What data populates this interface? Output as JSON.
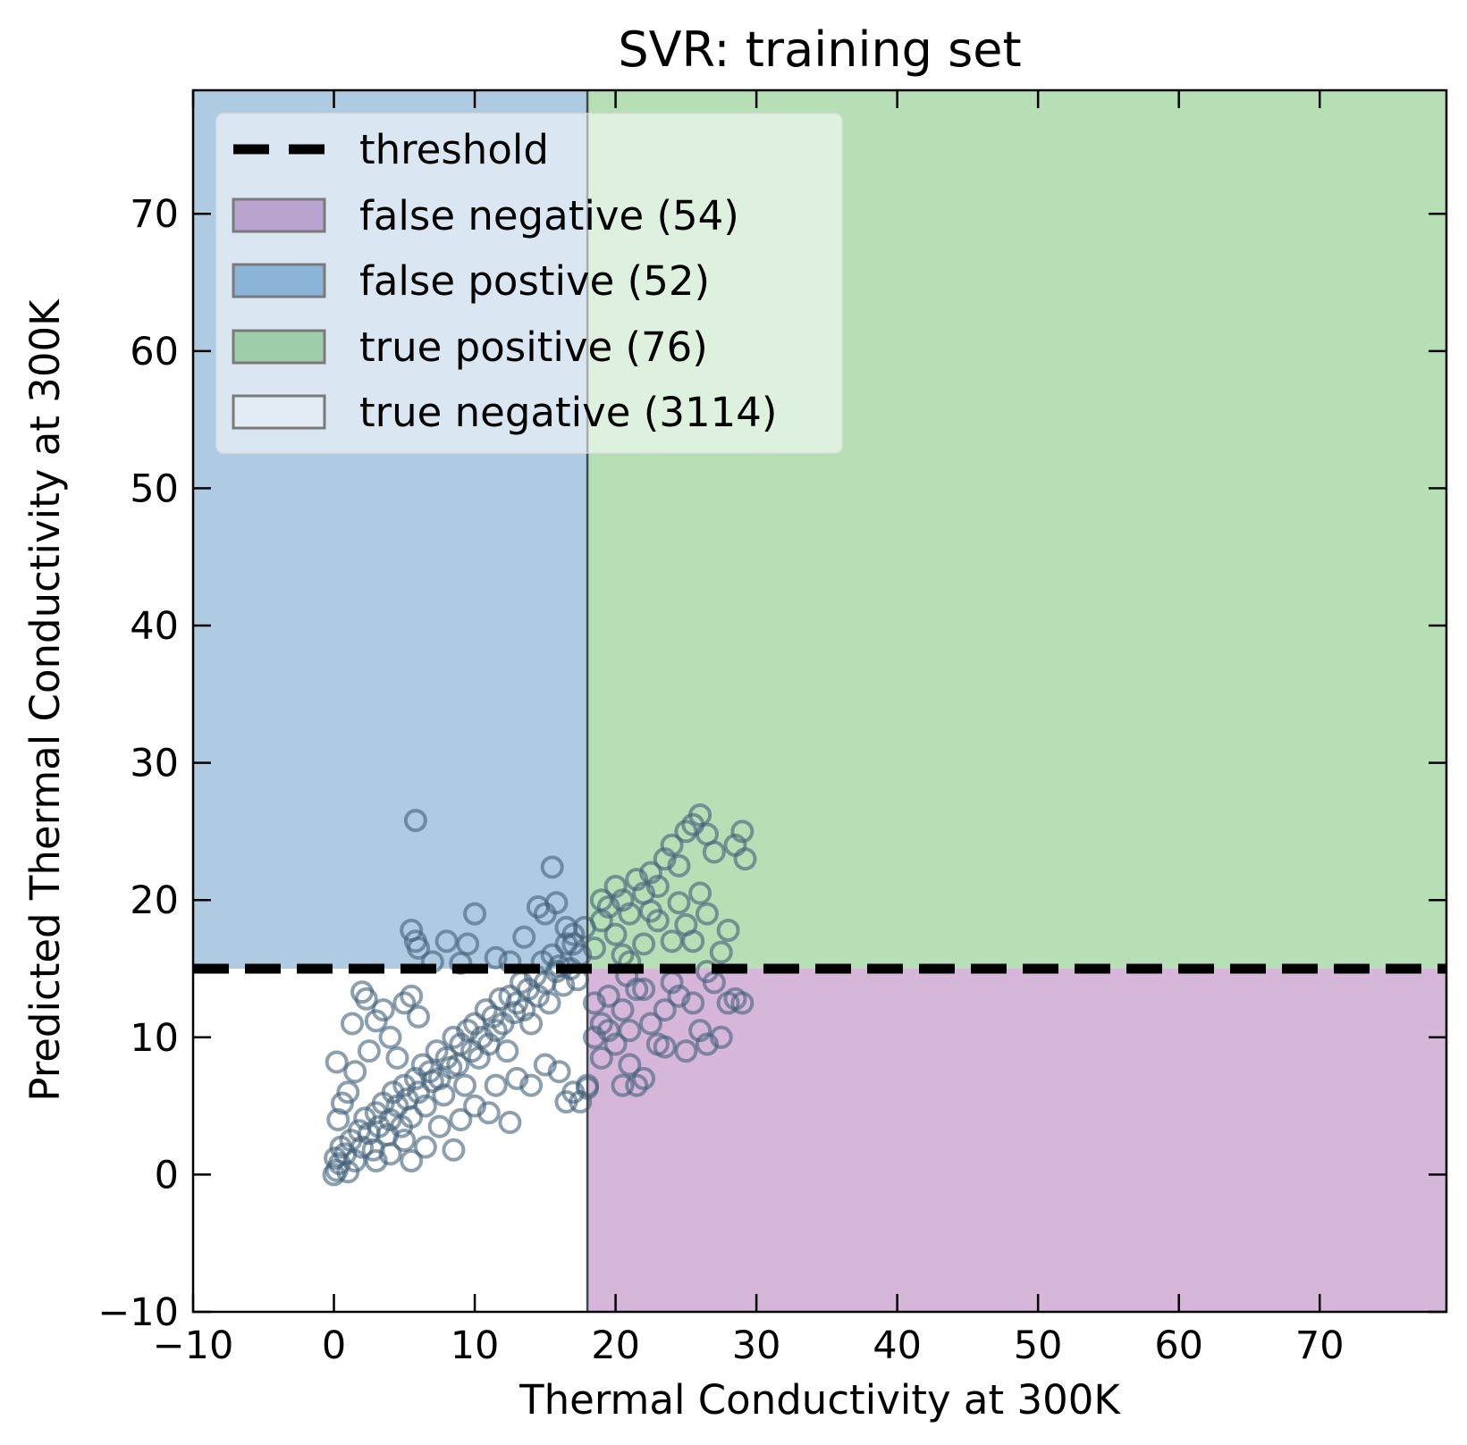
{
  "chart_data": {
    "type": "scatter",
    "title": "SVR: training set",
    "xlabel": "Thermal Conductivity at 300K",
    "ylabel": "Predicted Thermal Conductivity at 300K",
    "xlim": [
      -10,
      79
    ],
    "ylim": [
      -10,
      79
    ],
    "xticks": [
      -10,
      0,
      10,
      20,
      30,
      40,
      50,
      60,
      70
    ],
    "yticks": [
      -10,
      0,
      10,
      20,
      30,
      40,
      50,
      60,
      70
    ],
    "xtick_labels": [
      "−10",
      "0",
      "10",
      "20",
      "30",
      "40",
      "50",
      "60",
      "70"
    ],
    "ytick_labels": [
      "−10",
      "0",
      "10",
      "20",
      "30",
      "40",
      "50",
      "60",
      "70"
    ],
    "threshold": {
      "x": 18,
      "y": 15
    },
    "legend_placement": "upper-left",
    "legend": [
      {
        "label": "threshold",
        "kind": "line",
        "color": "#000000"
      },
      {
        "label": "false negative (54)",
        "kind": "patch",
        "color": "#b9a3cf"
      },
      {
        "label": "false postive (52)",
        "kind": "patch",
        "color": "#8cb4d9"
      },
      {
        "label": "true positive (76)",
        "kind": "patch",
        "color": "#9dcda9"
      },
      {
        "label": "true negative (3114)",
        "kind": "patch",
        "color": "#e3ecf4"
      }
    ],
    "regions": {
      "false_negative_color": "#d6b6d9",
      "false_positive_color": "#aecbe2",
      "true_positive_color": "#b7dfb6",
      "true_negative_color": "#ffffff"
    },
    "marker_color": "#41607a",
    "points": [
      [
        0,
        0
      ],
      [
        0.2,
        0.3
      ],
      [
        0.1,
        1.2
      ],
      [
        0.4,
        0.8
      ],
      [
        0.5,
        2.0
      ],
      [
        0.8,
        1.5
      ],
      [
        1.0,
        0.2
      ],
      [
        1.2,
        2.5
      ],
      [
        1.5,
        1.0
      ],
      [
        1.8,
        3.2
      ],
      [
        2.0,
        2.0
      ],
      [
        2.2,
        4.1
      ],
      [
        2.5,
        3.0
      ],
      [
        2.8,
        1.8
      ],
      [
        3.0,
        4.5
      ],
      [
        3.2,
        3.5
      ],
      [
        3.5,
        5.2
      ],
      [
        3.8,
        2.9
      ],
      [
        4.0,
        4.0
      ],
      [
        4.2,
        6.0
      ],
      [
        4.5,
        5.0
      ],
      [
        4.8,
        3.5
      ],
      [
        5.0,
        6.5
      ],
      [
        5.2,
        5.5
      ],
      [
        5.5,
        4.2
      ],
      [
        5.8,
        7.0
      ],
      [
        6.0,
        6.0
      ],
      [
        6.3,
        8.0
      ],
      [
        6.5,
        5.0
      ],
      [
        6.8,
        7.5
      ],
      [
        7.0,
        6.8
      ],
      [
        7.3,
        9.0
      ],
      [
        7.5,
        7.0
      ],
      [
        7.8,
        5.8
      ],
      [
        8.0,
        8.5
      ],
      [
        8.3,
        7.8
      ],
      [
        8.5,
        10.0
      ],
      [
        8.8,
        8.0
      ],
      [
        9.0,
        9.5
      ],
      [
        9.3,
        6.5
      ],
      [
        9.5,
        10.5
      ],
      [
        9.8,
        9.0
      ],
      [
        10.0,
        11.0
      ],
      [
        10.3,
        8.5
      ],
      [
        10.5,
        10.0
      ],
      [
        10.8,
        12.0
      ],
      [
        11.0,
        9.5
      ],
      [
        11.3,
        11.5
      ],
      [
        11.5,
        10.5
      ],
      [
        11.8,
        12.8
      ],
      [
        12.0,
        11.0
      ],
      [
        12.3,
        9.0
      ],
      [
        12.5,
        13.0
      ],
      [
        12.8,
        11.8
      ],
      [
        13.0,
        12.5
      ],
      [
        13.3,
        14.0
      ],
      [
        13.5,
        12.0
      ],
      [
        13.8,
        13.5
      ],
      [
        14.0,
        11.0
      ],
      [
        14.3,
        14.5
      ],
      [
        14.5,
        13.0
      ],
      [
        14.8,
        15.5
      ],
      [
        15.0,
        14.0
      ],
      [
        15.3,
        12.5
      ],
      [
        15.5,
        16.0
      ],
      [
        15.8,
        14.8
      ],
      [
        16.0,
        15.2
      ],
      [
        16.3,
        13.8
      ],
      [
        16.5,
        16.8
      ],
      [
        16.8,
        15.0
      ],
      [
        17.0,
        17.5
      ],
      [
        17.3,
        14.2
      ],
      [
        17.5,
        16.0
      ],
      [
        17.8,
        18.0
      ],
      [
        0.3,
        4.0
      ],
      [
        0.6,
        5.2
      ],
      [
        0.2,
        8.2
      ],
      [
        1.0,
        6.0
      ],
      [
        2.0,
        13.3
      ],
      [
        2.3,
        12.8
      ],
      [
        1.3,
        11.0
      ],
      [
        1.5,
        7.5
      ],
      [
        2.5,
        9.0
      ],
      [
        3.0,
        11.2
      ],
      [
        3.5,
        12.0
      ],
      [
        4.0,
        10.0
      ],
      [
        4.5,
        8.5
      ],
      [
        5.0,
        12.5
      ],
      [
        5.5,
        13.0
      ],
      [
        6.0,
        11.5
      ],
      [
        3.0,
        1.0
      ],
      [
        4.0,
        1.5
      ],
      [
        5.0,
        2.5
      ],
      [
        5.5,
        1.0
      ],
      [
        6.5,
        2.0
      ],
      [
        7.5,
        3.5
      ],
      [
        8.5,
        1.8
      ],
      [
        9.0,
        4.0
      ],
      [
        10.0,
        5.0
      ],
      [
        11.0,
        4.5
      ],
      [
        11.5,
        6.5
      ],
      [
        12.5,
        3.8
      ],
      [
        13.0,
        7.0
      ],
      [
        14.0,
        6.5
      ],
      [
        15.0,
        8.0
      ],
      [
        16.0,
        7.5
      ],
      [
        17.0,
        6.0
      ],
      [
        16.5,
        5.3
      ],
      [
        18.0,
        6.5
      ],
      [
        18.5,
        10.0
      ],
      [
        19.0,
        8.5
      ],
      [
        5.8,
        25.8
      ],
      [
        5.5,
        17.8
      ],
      [
        5.8,
        17.0
      ],
      [
        6.0,
        16.5
      ],
      [
        8.0,
        17.0
      ],
      [
        10.0,
        19.0
      ],
      [
        9.5,
        16.8
      ],
      [
        12.5,
        15.5
      ],
      [
        13.5,
        17.3
      ],
      [
        14.5,
        19.5
      ],
      [
        15.0,
        19.0
      ],
      [
        15.5,
        22.4
      ],
      [
        15.8,
        19.8
      ],
      [
        16.5,
        18.0
      ],
      [
        17.0,
        16.8
      ],
      [
        11.5,
        15.8
      ],
      [
        7.0,
        15.5
      ],
      [
        9.0,
        15.4
      ],
      [
        18.5,
        16.5
      ],
      [
        19.0,
        18.5
      ],
      [
        19.5,
        19.5
      ],
      [
        20.0,
        17.5
      ],
      [
        20.5,
        20.0
      ],
      [
        21.0,
        19.0
      ],
      [
        21.5,
        21.5
      ],
      [
        22.0,
        20.5
      ],
      [
        22.5,
        22.0
      ],
      [
        23.0,
        21.0
      ],
      [
        23.5,
        23.0
      ],
      [
        24.0,
        24.0
      ],
      [
        24.5,
        22.5
      ],
      [
        25.0,
        25.0
      ],
      [
        25.5,
        25.5
      ],
      [
        26.0,
        26.2
      ],
      [
        26.5,
        24.8
      ],
      [
        27.0,
        23.5
      ],
      [
        28.5,
        24.0
      ],
      [
        29.0,
        25.0
      ],
      [
        29.2,
        23.0
      ],
      [
        20.5,
        16.0
      ],
      [
        21.0,
        15.5
      ],
      [
        22.0,
        16.8
      ],
      [
        23.0,
        18.5
      ],
      [
        24.0,
        17.0
      ],
      [
        24.5,
        19.8
      ],
      [
        25.0,
        18.2
      ],
      [
        25.5,
        17.0
      ],
      [
        26.0,
        20.5
      ],
      [
        26.5,
        19.0
      ],
      [
        27.5,
        16.2
      ],
      [
        28.0,
        17.8
      ],
      [
        22.5,
        19.2
      ],
      [
        19.0,
        20.0
      ],
      [
        20.0,
        21.0
      ],
      [
        18.5,
        12.5
      ],
      [
        19.0,
        11.0
      ],
      [
        19.5,
        13.0
      ],
      [
        20.0,
        9.5
      ],
      [
        20.5,
        12.0
      ],
      [
        21.0,
        10.5
      ],
      [
        21.5,
        13.5
      ],
      [
        21.5,
        6.5
      ],
      [
        22.0,
        7.0
      ],
      [
        22.5,
        11.0
      ],
      [
        23.0,
        9.5
      ],
      [
        23.5,
        12.0
      ],
      [
        24.0,
        14.0
      ],
      [
        24.5,
        13.0
      ],
      [
        25.0,
        9.0
      ],
      [
        25.5,
        12.5
      ],
      [
        26.0,
        10.5
      ],
      [
        26.5,
        9.5
      ],
      [
        27.0,
        14.0
      ],
      [
        27.5,
        10.0
      ],
      [
        28.0,
        12.5
      ],
      [
        28.5,
        12.8
      ],
      [
        29.0,
        12.5
      ],
      [
        20.5,
        6.5
      ],
      [
        21.0,
        8.0
      ],
      [
        22.0,
        13.5
      ],
      [
        18.0,
        6.3
      ],
      [
        17.5,
        5.3
      ],
      [
        19.5,
        10.5
      ],
      [
        23.5,
        9.3
      ],
      [
        20.8,
        14.5
      ],
      [
        26.5,
        14.8
      ]
    ]
  }
}
